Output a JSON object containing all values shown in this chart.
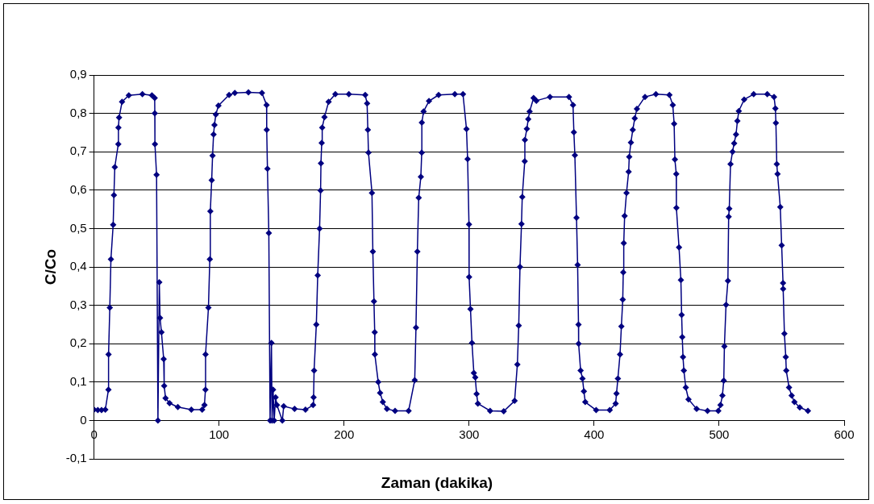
{
  "chart_data": {
    "type": "line",
    "xlabel": "Zaman (dakika)",
    "ylabel": "C/Co",
    "marker": "diamond",
    "grid": "y",
    "legend": false,
    "xlim": [
      0,
      600
    ],
    "xticks": [
      0,
      100,
      200,
      300,
      400,
      500,
      600
    ],
    "ylim": [
      -0.1,
      0.9
    ],
    "yticks": [
      {
        "value": -0.1,
        "label": "-0,1"
      },
      0,
      {
        "value": 0.1,
        "label": "0,1"
      },
      {
        "value": 0.2,
        "label": "0,2"
      },
      {
        "value": 0.3,
        "label": "0,3"
      },
      {
        "value": 0.4,
        "label": "0,4"
      },
      {
        "value": 0.5,
        "label": "0,5"
      },
      {
        "value": 0.6,
        "label": "0,6"
      },
      {
        "value": 0.7,
        "label": "0,7"
      },
      {
        "value": 0.8,
        "label": "0,8"
      },
      {
        "value": 0.9,
        "label": "0,9"
      }
    ],
    "series": [
      {
        "color": "#000080",
        "x": [
          0,
          3,
          6,
          9,
          11.5,
          11.6,
          12.6,
          13.5,
          15.3,
          15.9,
          16.6,
          19.4,
          19.5,
          20,
          22.4,
          27.8,
          38.7,
          46.3,
          48.5,
          48.6,
          48.7,
          50,
          51.1,
          52.2,
          52.8,
          53.9,
          55.7,
          56.1,
          57.2,
          60.4,
          67,
          77.8,
          86.5,
          88.3,
          89.1,
          89.2,
          91.5,
          92.6,
          93,
          94.1,
          94.8,
          95.6,
          96.3,
          97.4,
          99.5,
          108,
          112.6,
          123.5,
          134.3,
          138,
          138.1,
          138.7,
          139.8,
          140.8,
          141.9,
          142.4,
          143.2,
          144.1,
          145.2,
          146.3,
          150.6,
          151.7,
          160.4,
          169.1,
          175.2,
          175.6,
          176,
          177.8,
          178.9,
          180.4,
          181.2,
          181.5,
          182.1,
          182.5,
          184.3,
          187.6,
          193,
          203.8,
          216.9,
          218.4,
          219,
          219.5,
          222.3,
          223,
          223.9,
          224.5,
          224.6,
          227.3,
          228.8,
          231,
          234.3,
          240.8,
          251.6,
          256.5,
          257.5,
          258.6,
          259.7,
          261.4,
          262.1,
          262.2,
          263.6,
          267.9,
          275.6,
          288.6,
          295.1,
          297.9,
          298.8,
          299.9,
          300,
          301.1,
          302.3,
          303.8,
          304.9,
          306,
          307,
          316.8,
          327.7,
          336.4,
          338.6,
          339.7,
          340.7,
          341.9,
          342.5,
          344.5,
          344.6,
          346.2,
          347.3,
          348.4,
          351.6,
          353.8,
          364.7,
          379.9,
          383.1,
          383.8,
          384.6,
          385.9,
          386.8,
          387.5,
          387.6,
          389.2,
          390.7,
          391.8,
          392.9,
          401.6,
          412.5,
          417.2,
          417.9,
          419,
          420.7,
          421.8,
          422.9,
          423.3,
          423.7,
          424.4,
          425.9,
          427.6,
          428.1,
          429.4,
          430.9,
          432.5,
          434.2,
          440.7,
          449.4,
          460.2,
          462.9,
          464,
          464.6,
          465.7,
          465.8,
          467.9,
          469.4,
          470,
          470.5,
          471.1,
          471.8,
          473.3,
          475.5,
          482,
          490.7,
          499.3,
          501.1,
          502.6,
          503.7,
          504.2,
          505.5,
          507,
          507.6,
          508.1,
          509.1,
          510.7,
          512,
          513.5,
          514.6,
          515.7,
          520,
          527.6,
          538.5,
          543.9,
          545,
          545.4,
          546.1,
          546.7,
          548.9,
          550,
          551.1,
          551.2,
          552.2,
          553.3,
          553.7,
          555.9,
          558,
          560.2,
          564.5,
          571
        ],
        "values": [
          0.028,
          0.027,
          0.027,
          0.028,
          0.08,
          0.172,
          0.294,
          0.42,
          0.51,
          0.587,
          0.66,
          0.72,
          0.763,
          0.789,
          0.83,
          0.847,
          0.85,
          0.847,
          0.84,
          0.8,
          0.72,
          0.64,
          0,
          0.36,
          0.267,
          0.23,
          0.16,
          0.09,
          0.058,
          0.045,
          0.035,
          0.028,
          0.028,
          0.04,
          0.08,
          0.172,
          0.294,
          0.42,
          0.545,
          0.626,
          0.69,
          0.745,
          0.77,
          0.797,
          0.82,
          0.848,
          0.853,
          0.855,
          0.853,
          0.822,
          0.757,
          0.656,
          0.488,
          0,
          0.202,
          0,
          0.08,
          0,
          0.06,
          0.04,
          0,
          0.037,
          0.03,
          0.028,
          0.04,
          0.06,
          0.13,
          0.25,
          0.378,
          0.5,
          0.599,
          0.67,
          0.723,
          0.763,
          0.79,
          0.83,
          0.85,
          0.85,
          0.848,
          0.826,
          0.757,
          0.698,
          0.593,
          0.44,
          0.31,
          0.23,
          0.172,
          0.1,
          0.072,
          0.048,
          0.03,
          0.025,
          0.025,
          0.105,
          0.242,
          0.44,
          0.58,
          0.635,
          0.698,
          0.776,
          0.805,
          0.832,
          0.848,
          0.85,
          0.85,
          0.759,
          0.681,
          0.511,
          0.374,
          0.29,
          0.202,
          0.124,
          0.112,
          0.069,
          0.044,
          0.025,
          0.024,
          0.051,
          0.146,
          0.247,
          0.4,
          0.512,
          0.582,
          0.675,
          0.731,
          0.76,
          0.785,
          0.805,
          0.84,
          0.833,
          0.843,
          0.843,
          0.822,
          0.751,
          0.691,
          0.528,
          0.405,
          0.25,
          0.2,
          0.13,
          0.109,
          0.076,
          0.048,
          0.027,
          0.027,
          0.044,
          0.07,
          0.109,
          0.172,
          0.245,
          0.315,
          0.386,
          0.462,
          0.533,
          0.593,
          0.648,
          0.687,
          0.724,
          0.757,
          0.787,
          0.812,
          0.843,
          0.85,
          0.848,
          0.822,
          0.773,
          0.68,
          0.642,
          0.554,
          0.451,
          0.366,
          0.275,
          0.217,
          0.165,
          0.13,
          0.086,
          0.055,
          0.03,
          0.025,
          0.025,
          0.04,
          0.065,
          0.104,
          0.193,
          0.301,
          0.364,
          0.531,
          0.552,
          0.668,
          0.7,
          0.722,
          0.745,
          0.78,
          0.806,
          0.836,
          0.85,
          0.85,
          0.843,
          0.813,
          0.775,
          0.668,
          0.642,
          0.556,
          0.456,
          0.358,
          0.343,
          0.226,
          0.165,
          0.13,
          0.086,
          0.065,
          0.048,
          0.034,
          0.025
        ]
      }
    ]
  }
}
